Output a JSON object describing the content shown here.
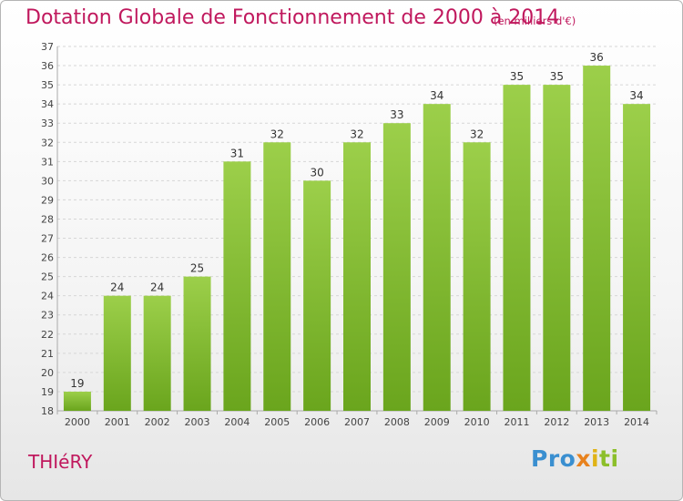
{
  "header": {
    "title": "Dotation Globale de Fonctionnement de 2000 à 2014",
    "subtitle": "(en milliers d'€)"
  },
  "footer": {
    "commune": "THIéRY",
    "logo_parts": [
      "Pro",
      "x",
      "i",
      "ti"
    ]
  },
  "colors": {
    "bar_light": "#9ccf4a",
    "bar_dark": "#6aa51d",
    "accent": "#c0185d"
  },
  "chart_data": {
    "type": "bar",
    "categories": [
      "2000",
      "2001",
      "2002",
      "2003",
      "2004",
      "2005",
      "2006",
      "2007",
      "2008",
      "2009",
      "2010",
      "2011",
      "2012",
      "2013",
      "2014"
    ],
    "values": [
      19,
      24,
      24,
      25,
      31,
      32,
      30,
      32,
      33,
      34,
      32,
      35,
      35,
      36,
      34
    ],
    "title": "Dotation Globale de Fonctionnement de 2000 à 2014",
    "subtitle": "(en milliers d'€)",
    "ylim": [
      18,
      37
    ],
    "yticks": [
      18,
      19,
      20,
      21,
      22,
      23,
      24,
      25,
      26,
      27,
      28,
      29,
      30,
      31,
      32,
      33,
      34,
      35,
      36,
      37
    ],
    "grid": true,
    "data_labels": true
  }
}
